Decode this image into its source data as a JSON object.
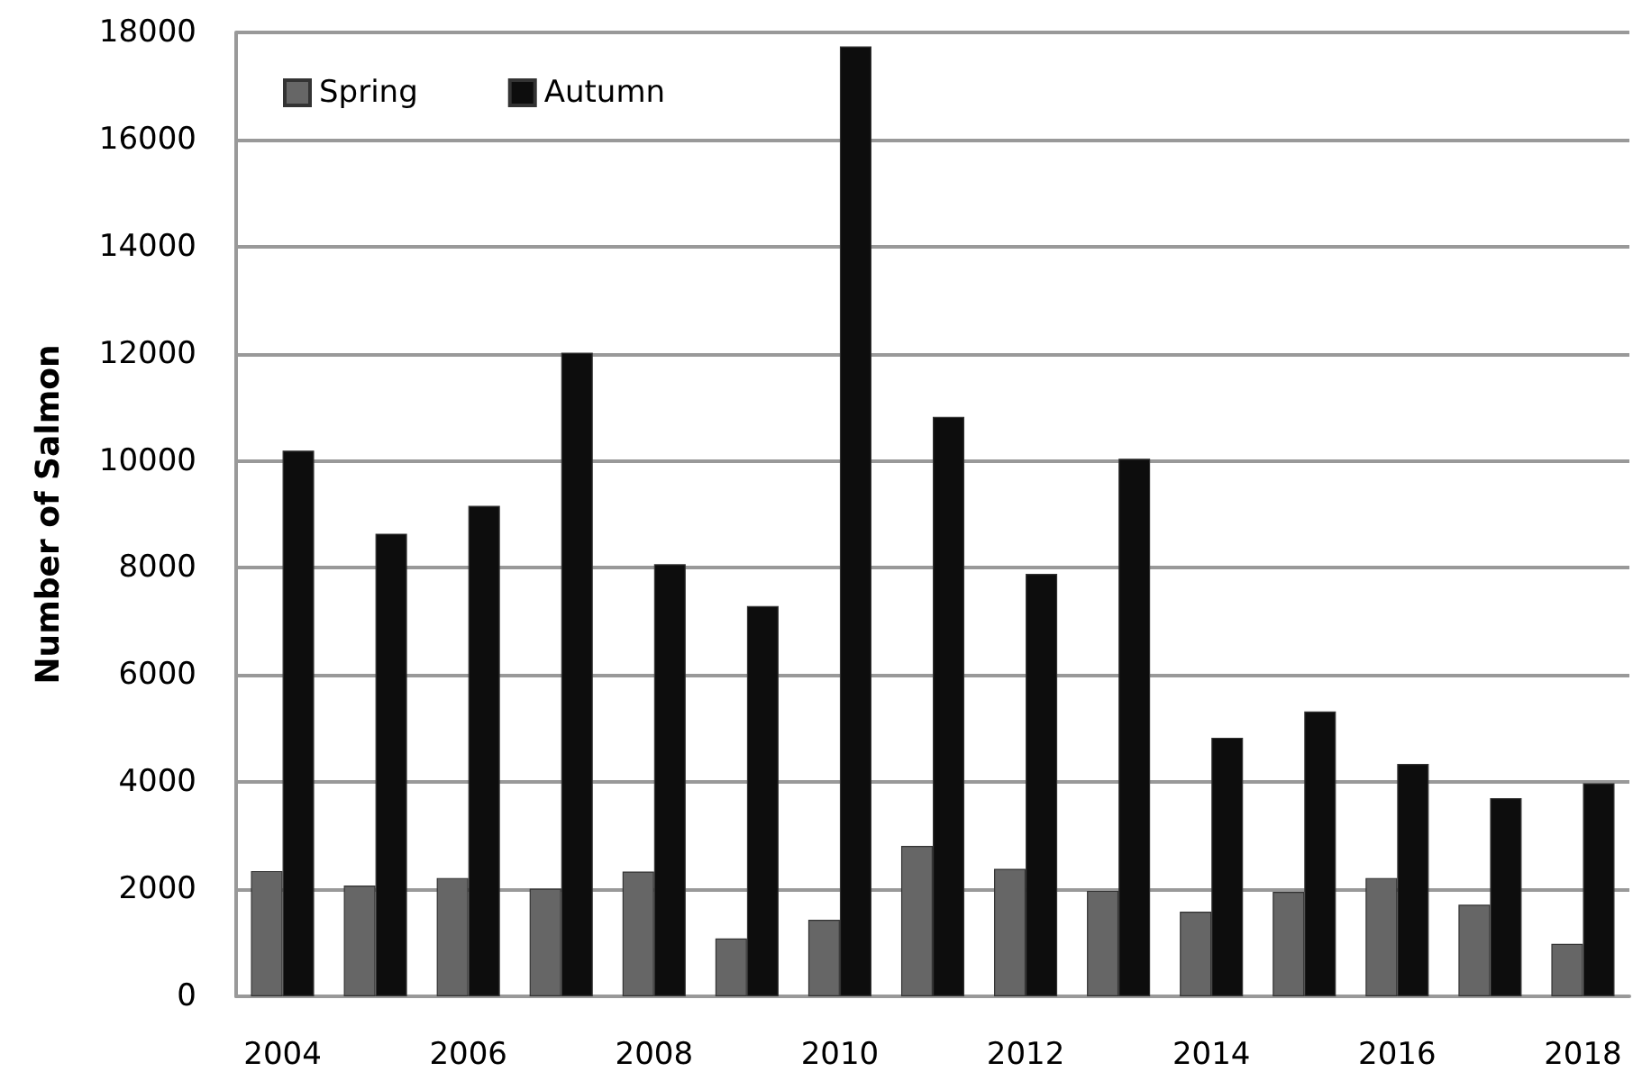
{
  "chart_data": {
    "type": "bar",
    "ylabel": "Number of Salmon",
    "categories": [
      "2004",
      null,
      "2006",
      null,
      "2008",
      null,
      "2010",
      null,
      "2012",
      null,
      "2014",
      null,
      "2016",
      null,
      "2018"
    ],
    "series": [
      {
        "name": "Spring",
        "color": "#666666",
        "values": [
          2340,
          2070,
          2210,
          2010,
          2330,
          1080,
          1430,
          2810,
          2380,
          1970,
          1580,
          1950,
          2210,
          1710,
          980
        ]
      },
      {
        "name": "Autumn",
        "color": "#0d0d0d",
        "values": [
          10190,
          8640,
          9160,
          12020,
          8070,
          7290,
          17740,
          10820,
          7890,
          10040,
          4830,
          5320,
          4340,
          3700,
          3980
        ]
      }
    ],
    "ylim": [
      0,
      18000
    ],
    "yticks": [
      0,
      2000,
      4000,
      6000,
      8000,
      10000,
      12000,
      14000,
      16000,
      18000
    ],
    "grid": "y",
    "legend": "top left"
  }
}
